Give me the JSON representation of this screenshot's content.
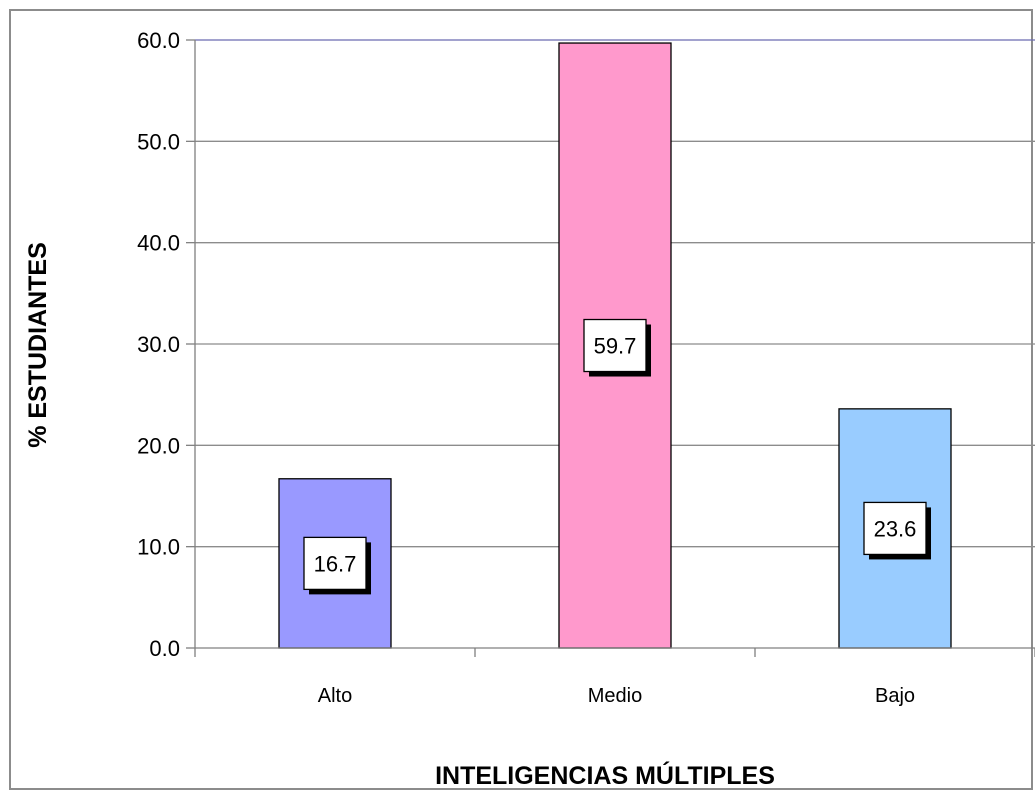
{
  "chart_data": {
    "type": "bar",
    "categories": [
      "Alto",
      "Medio",
      "Bajo"
    ],
    "values": [
      16.7,
      59.7,
      23.6
    ],
    "data_labels": [
      "16.7",
      "59.7",
      "23.6"
    ],
    "bar_colors": [
      "#9999ff",
      "#ff99cc",
      "#99ccff"
    ],
    "xlabel": "INTELIGENCIAS MÚLTIPLES",
    "ylabel": "% ESTUDIANTES",
    "ylim": [
      0,
      60
    ],
    "yticks": [
      "0.0",
      "10.0",
      "20.0",
      "30.0",
      "40.0",
      "50.0",
      "60.0"
    ],
    "grid": true,
    "legend": "none"
  }
}
